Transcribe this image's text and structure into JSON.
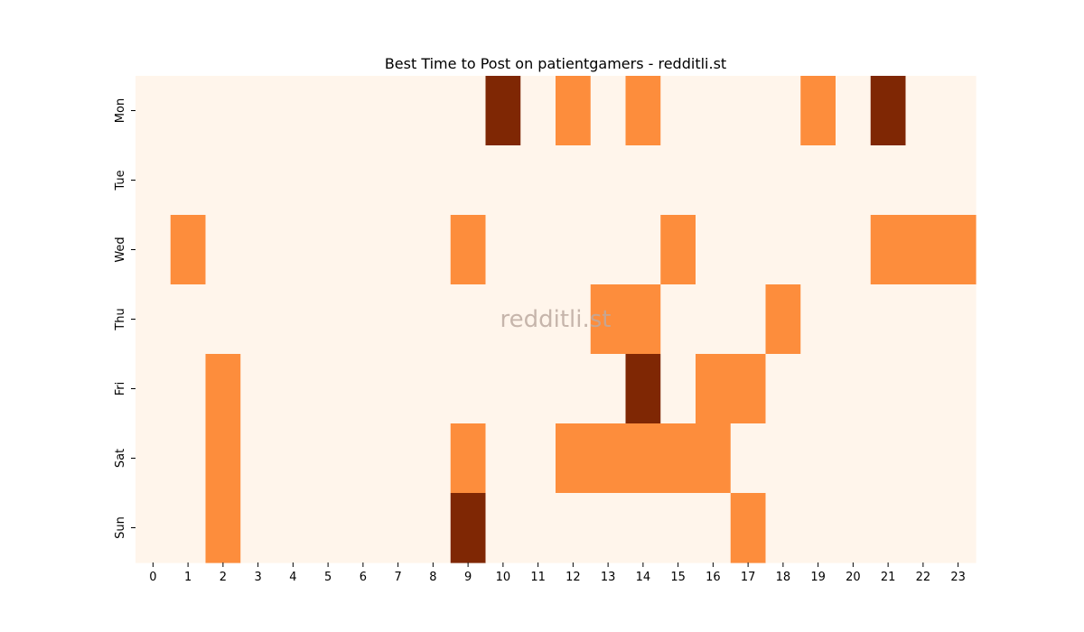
{
  "chart_data": {
    "type": "heatmap",
    "title": "Best Time to Post on patientgamers - redditli.st",
    "watermark": "redditli.st",
    "xlabel": "",
    "ylabel": "",
    "x_categories": [
      "0",
      "1",
      "2",
      "3",
      "4",
      "5",
      "6",
      "7",
      "8",
      "9",
      "10",
      "11",
      "12",
      "13",
      "14",
      "15",
      "16",
      "17",
      "18",
      "19",
      "20",
      "21",
      "22",
      "23"
    ],
    "y_categories": [
      "Mon",
      "Tue",
      "Wed",
      "Thu",
      "Fri",
      "Sat",
      "Sun"
    ],
    "values": [
      [
        0,
        0,
        0,
        0,
        0,
        0,
        0,
        0,
        0,
        0,
        2,
        0,
        1,
        0,
        1,
        0,
        0,
        0,
        0,
        1,
        0,
        2,
        0,
        0
      ],
      [
        0,
        0,
        0,
        0,
        0,
        0,
        0,
        0,
        0,
        0,
        0,
        0,
        0,
        0,
        0,
        0,
        0,
        0,
        0,
        0,
        0,
        0,
        0,
        0
      ],
      [
        0,
        1,
        0,
        0,
        0,
        0,
        0,
        0,
        0,
        1,
        0,
        0,
        0,
        0,
        0,
        1,
        0,
        0,
        0,
        0,
        0,
        1,
        1,
        1
      ],
      [
        0,
        0,
        0,
        0,
        0,
        0,
        0,
        0,
        0,
        0,
        0,
        0,
        0,
        1,
        1,
        0,
        0,
        0,
        1,
        0,
        0,
        0,
        0,
        0
      ],
      [
        0,
        0,
        1,
        0,
        0,
        0,
        0,
        0,
        0,
        0,
        0,
        0,
        0,
        0,
        2,
        0,
        1,
        1,
        0,
        0,
        0,
        0,
        0,
        0
      ],
      [
        0,
        0,
        1,
        0,
        0,
        0,
        0,
        0,
        0,
        1,
        0,
        0,
        1,
        1,
        1,
        1,
        1,
        0,
        0,
        0,
        0,
        0,
        0,
        0
      ],
      [
        0,
        0,
        1,
        0,
        0,
        0,
        0,
        0,
        0,
        2,
        0,
        0,
        0,
        0,
        0,
        0,
        0,
        1,
        0,
        0,
        0,
        0,
        0,
        0
      ]
    ],
    "colormap": "Oranges",
    "colors": {
      "0": "#fff5eb",
      "1": "#fd8d3c",
      "2": "#7f2704"
    },
    "grid": false,
    "colorbar": false
  }
}
